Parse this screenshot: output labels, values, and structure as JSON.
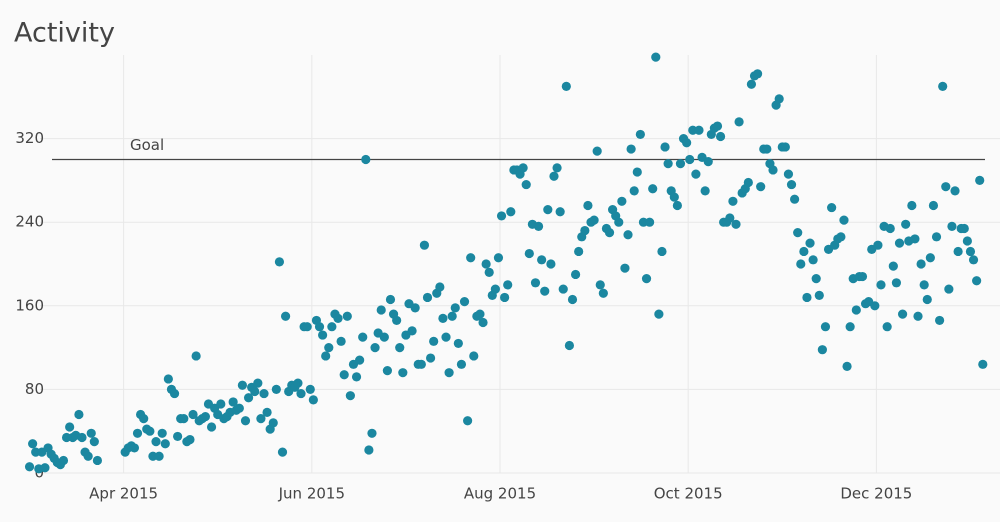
{
  "chart_data": {
    "type": "scatter",
    "title": "Activity",
    "color": "#1b87a0",
    "goal": {
      "value": 300,
      "label": "Goal"
    },
    "x": [
      "2015-03",
      "2015-04",
      "2015-05",
      "2015-06",
      "2015-07",
      "2015-08",
      "2015-09",
      "2015-10",
      "2015-11",
      "2015-12",
      "2016-01"
    ],
    "values": [
      [
        6,
        28,
        20,
        4,
        20,
        5,
        24,
        18,
        14,
        10,
        8,
        12,
        34,
        44,
        34,
        36,
        56,
        34,
        20,
        16,
        38,
        30,
        12
      ],
      [
        20,
        24,
        26,
        24,
        38,
        56,
        52,
        42,
        40,
        16,
        30,
        16,
        38,
        28,
        90,
        80,
        76,
        35,
        52,
        52,
        30,
        32,
        56,
        112,
        50,
        52,
        54,
        66,
        44,
        62
      ],
      [
        56,
        66,
        52,
        54,
        58,
        68,
        60,
        62,
        84,
        50,
        72,
        82,
        78,
        86,
        52,
        76,
        58,
        42,
        48,
        80,
        202,
        20,
        150,
        78,
        84,
        82,
        86,
        76,
        140,
        140,
        80
      ],
      [
        70,
        146,
        140,
        132,
        112,
        120,
        140,
        152,
        148,
        126,
        94,
        150,
        74,
        104,
        92,
        108,
        130,
        300,
        22,
        38,
        120,
        134,
        156,
        130,
        98,
        166,
        152,
        146,
        120,
        96
      ],
      [
        132,
        162,
        136,
        158,
        104,
        104,
        218,
        168,
        110,
        126,
        172,
        178,
        148,
        130,
        96,
        150,
        158,
        124,
        104,
        164,
        50,
        206,
        112,
        150,
        152,
        144,
        200,
        192,
        170,
        176,
        206
      ],
      [
        246,
        168,
        180,
        250,
        290,
        290,
        286,
        292,
        276,
        210,
        238,
        182,
        236,
        204,
        174,
        252,
        200,
        284,
        292,
        250,
        176,
        370,
        122,
        166,
        190,
        212,
        226,
        232,
        256,
        240,
        242
      ],
      [
        308,
        180,
        172,
        234,
        230,
        252,
        246,
        240,
        260,
        196,
        228,
        310,
        270,
        288,
        324,
        240,
        186,
        240,
        272,
        398,
        152,
        212,
        312,
        296,
        270,
        264,
        256,
        296,
        320,
        316
      ],
      [
        300,
        328,
        286,
        328,
        302,
        270,
        298,
        324,
        330,
        332,
        322,
        240,
        240,
        244,
        260,
        238,
        336,
        268,
        272,
        278,
        372,
        380,
        382,
        274,
        310,
        310,
        296,
        290,
        352,
        358,
        312
      ],
      [
        312,
        286,
        276,
        262,
        230,
        200,
        212,
        168,
        220,
        204,
        186,
        170,
        118,
        140,
        214,
        254,
        218,
        224,
        226,
        242,
        102,
        140,
        186,
        156,
        188,
        188,
        162,
        164,
        214,
        160
      ],
      [
        218,
        180,
        236,
        140,
        234,
        198,
        182,
        220,
        152,
        238,
        222,
        256,
        224,
        150,
        200,
        180,
        166,
        206,
        256,
        226,
        146,
        370,
        274,
        176,
        236,
        270,
        212,
        234,
        234,
        222,
        212
      ],
      [
        204,
        184,
        280,
        104
      ]
    ],
    "xlim": [
      "2015-03",
      "2016-01"
    ],
    "xticks": [
      {
        "value": "2015-04",
        "label": "Apr 2015"
      },
      {
        "value": "2015-06",
        "label": "Jun 2015"
      },
      {
        "value": "2015-08",
        "label": "Aug 2015"
      },
      {
        "value": "2015-10",
        "label": "Oct 2015"
      },
      {
        "value": "2015-12",
        "label": "Dec 2015"
      }
    ],
    "ylim": [
      0,
      400
    ],
    "yticks": [
      0,
      80,
      160,
      240,
      320
    ],
    "grid": true
  }
}
